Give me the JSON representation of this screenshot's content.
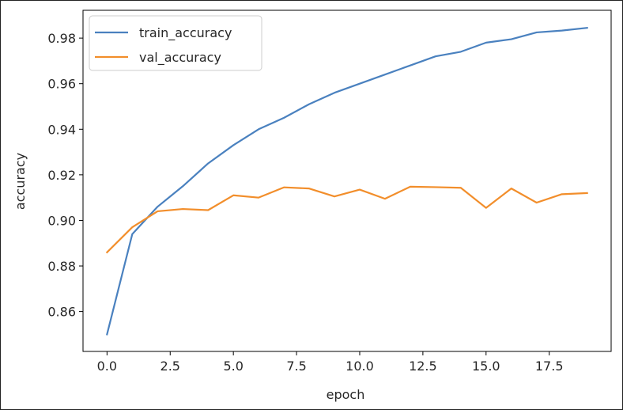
{
  "chart_data": {
    "type": "line",
    "xlabel": "epoch",
    "ylabel": "accuracy",
    "xlim": [
      -0.95,
      19.95
    ],
    "ylim": [
      0.8425,
      0.9922
    ],
    "xticks": [
      0.0,
      2.5,
      5.0,
      7.5,
      10.0,
      12.5,
      15.0,
      17.5
    ],
    "xtick_labels": [
      "0.0",
      "2.5",
      "5.0",
      "7.5",
      "10.0",
      "12.5",
      "15.0",
      "17.5"
    ],
    "yticks": [
      0.86,
      0.88,
      0.9,
      0.92,
      0.94,
      0.96,
      0.98
    ],
    "ytick_labels": [
      "0.86",
      "0.88",
      "0.90",
      "0.92",
      "0.94",
      "0.96",
      "0.98"
    ],
    "grid": false,
    "legend_position": "top-left",
    "x": [
      0,
      1,
      2,
      3,
      4,
      5,
      6,
      7,
      8,
      9,
      10,
      11,
      12,
      13,
      14,
      15,
      16,
      17,
      18,
      19
    ],
    "series": [
      {
        "name": "train_accuracy",
        "color": "#4a81bf",
        "values": [
          0.85,
          0.894,
          0.906,
          0.915,
          0.925,
          0.933,
          0.94,
          0.945,
          0.951,
          0.956,
          0.96,
          0.964,
          0.968,
          0.972,
          0.974,
          0.978,
          0.9795,
          0.9825,
          0.9833,
          0.9845
        ]
      },
      {
        "name": "val_accuracy",
        "color": "#f28e2b",
        "values": [
          0.886,
          0.897,
          0.904,
          0.905,
          0.9045,
          0.911,
          0.91,
          0.9145,
          0.914,
          0.9105,
          0.9135,
          0.9095,
          0.9148,
          0.9146,
          0.9143,
          0.9055,
          0.914,
          0.9078,
          0.9115,
          0.912
        ]
      }
    ]
  }
}
